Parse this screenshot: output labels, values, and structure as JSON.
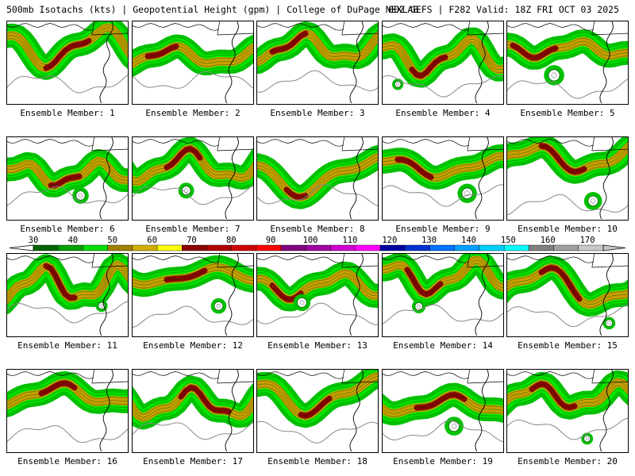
{
  "header": {
    "left": "500mb Isotachs (kts) | Geopotential Height (gpm) | College of DuPage NEXLAB",
    "right": "00Z GEFS | F282 Valid: 18Z FRI OCT 03 2025"
  },
  "members": [
    {
      "label": "Ensemble Member: 1"
    },
    {
      "label": "Ensemble Member: 2"
    },
    {
      "label": "Ensemble Member: 3"
    },
    {
      "label": "Ensemble Member: 4"
    },
    {
      "label": "Ensemble Member: 5"
    },
    {
      "label": "Ensemble Member: 6"
    },
    {
      "label": "Ensemble Member: 7"
    },
    {
      "label": "Ensemble Member: 8"
    },
    {
      "label": "Ensemble Member: 9"
    },
    {
      "label": "Ensemble Member: 10"
    },
    {
      "label": "Ensemble Member: 11"
    },
    {
      "label": "Ensemble Member: 12"
    },
    {
      "label": "Ensemble Member: 13"
    },
    {
      "label": "Ensemble Member: 14"
    },
    {
      "label": "Ensemble Member: 15"
    },
    {
      "label": "Ensemble Member: 16"
    },
    {
      "label": "Ensemble Member: 17"
    },
    {
      "label": "Ensemble Member: 18"
    },
    {
      "label": "Ensemble Member: 19"
    },
    {
      "label": "Ensemble Member: 20"
    }
  ],
  "colorbar": {
    "ticks": [
      "30",
      "40",
      "50",
      "60",
      "70",
      "80",
      "90",
      "100",
      "110",
      "120",
      "130",
      "140",
      "150",
      "160",
      "170"
    ],
    "colors": [
      "#006400",
      "#00a000",
      "#00dd00",
      "#a08000",
      "#d0b000",
      "#ffff00",
      "#8b0000",
      "#b00000",
      "#d00000",
      "#ff0000",
      "#800080",
      "#a000a0",
      "#d000d0",
      "#ff00ff",
      "#0000a0",
      "#0030d0",
      "#0070ff",
      "#00a0ff",
      "#00d0ff",
      "#00ffff",
      "#808080",
      "#a0a0a0",
      "#c8c8c8"
    ]
  }
}
